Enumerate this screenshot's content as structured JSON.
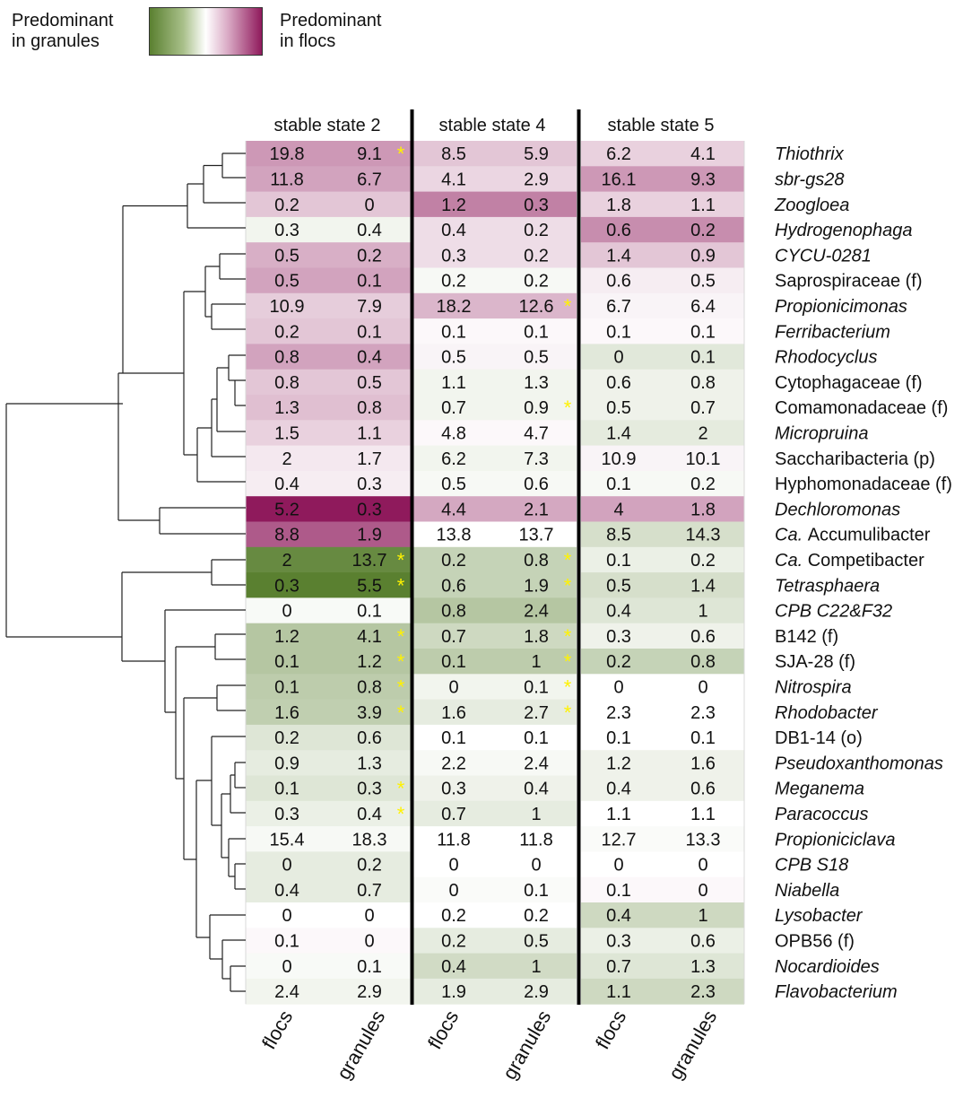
{
  "legend": {
    "left_line1": "Predominant",
    "left_line2": "in granules",
    "right_line1": "Predominant",
    "right_line2": "in flocs"
  },
  "colors": {
    "green_extreme": "#5a8030",
    "white_mid": "#ffffff",
    "purple_extreme": "#8f1a5c",
    "star": "#fff200",
    "separator": "#000000"
  },
  "chart_data": {
    "type": "heatmap",
    "states": [
      "stable state 2",
      "stable state 4",
      "stable state 5"
    ],
    "column_labels": [
      "flocs",
      "granules"
    ],
    "rows": [
      {
        "label": "Thiothrix",
        "italic": true,
        "values": [
          "19.8",
          "9.1",
          "8.5",
          "5.9",
          "6.2",
          "4.1"
        ],
        "stars": [
          true,
          false,
          false
        ],
        "shade": [
          0.45,
          0.25,
          0.2
        ]
      },
      {
        "label": "sbr-gs28",
        "italic": true,
        "values": [
          "11.8",
          "6.7",
          "4.1",
          "2.9",
          "16.1",
          "9.3"
        ],
        "stars": [
          false,
          false,
          false
        ],
        "shade": [
          0.4,
          0.18,
          0.45
        ]
      },
      {
        "label": "Zoogloea",
        "italic": true,
        "values": [
          "0.2",
          "0",
          "1.2",
          "0.3",
          "1.8",
          "1.1"
        ],
        "stars": [
          false,
          false,
          false
        ],
        "shade": [
          0.25,
          0.55,
          0.2
        ]
      },
      {
        "label": "Hydrogenophaga",
        "italic": true,
        "values": [
          "0.3",
          "0.4",
          "0.4",
          "0.2",
          "0.6",
          "0.2"
        ],
        "stars": [
          false,
          false,
          false
        ],
        "shade": [
          -0.08,
          0.15,
          0.5
        ]
      },
      {
        "label": "CYCU-0281",
        "italic": true,
        "values": [
          "0.5",
          "0.2",
          "0.3",
          "0.2",
          "1.4",
          "0.9"
        ],
        "stars": [
          false,
          false,
          false
        ],
        "shade": [
          0.35,
          0.15,
          0.25
        ]
      },
      {
        "label": "Saprospiraceae (f)",
        "italic": false,
        "values": [
          "0.5",
          "0.1",
          "0.2",
          "0.2",
          "0.6",
          "0.5"
        ],
        "stars": [
          false,
          false,
          false
        ],
        "shade": [
          0.4,
          -0.05,
          0.08
        ]
      },
      {
        "label": "Propionicimonas",
        "italic": true,
        "values": [
          "10.9",
          "7.9",
          "18.2",
          "12.6",
          "6.7",
          "6.4"
        ],
        "stars": [
          false,
          true,
          false
        ],
        "shade": [
          0.22,
          0.32,
          0.05
        ]
      },
      {
        "label": "Ferribacterium",
        "italic": true,
        "values": [
          "0.2",
          "0.1",
          "0.1",
          "0.1",
          "0.1",
          "0.1"
        ],
        "stars": [
          false,
          false,
          false
        ],
        "shade": [
          0.25,
          0.03,
          0.03
        ]
      },
      {
        "label": "Rhodocyclus",
        "italic": true,
        "values": [
          "0.8",
          "0.4",
          "0.5",
          "0.5",
          "0",
          "0.1"
        ],
        "stars": [
          false,
          false,
          false
        ],
        "shade": [
          0.4,
          0.05,
          -0.18
        ]
      },
      {
        "label": "Cytophagaceae (f)",
        "italic": false,
        "values": [
          "0.8",
          "0.5",
          "1.1",
          "1.3",
          "0.6",
          "0.8"
        ],
        "stars": [
          false,
          false,
          false
        ],
        "shade": [
          0.25,
          -0.08,
          -0.1
        ]
      },
      {
        "label": "Comamonadaceae (f)",
        "italic": false,
        "values": [
          "1.3",
          "0.8",
          "0.7",
          "0.9",
          "0.5",
          "0.7"
        ],
        "stars": [
          false,
          true,
          false
        ],
        "shade": [
          0.28,
          -0.08,
          -0.1
        ]
      },
      {
        "label": "Micropruina",
        "italic": true,
        "values": [
          "1.5",
          "1.1",
          "4.8",
          "4.7",
          "1.4",
          "2"
        ],
        "stars": [
          false,
          false,
          false
        ],
        "shade": [
          0.2,
          0.03,
          -0.16
        ]
      },
      {
        "label": "Saccharibacteria (p)",
        "italic": false,
        "values": [
          "2",
          "1.7",
          "6.2",
          "7.3",
          "10.9",
          "10.1"
        ],
        "stars": [
          false,
          false,
          false
        ],
        "shade": [
          0.1,
          -0.08,
          0.05
        ]
      },
      {
        "label": "Hyphomonadaceae (f)",
        "italic": false,
        "values": [
          "0.4",
          "0.3",
          "0.5",
          "0.6",
          "0.1",
          "0.2"
        ],
        "stars": [
          false,
          false,
          false
        ],
        "shade": [
          0.08,
          -0.05,
          -0.05
        ]
      },
      {
        "label": "Dechloromonas",
        "italic": true,
        "values": [
          "5.2",
          "0.3",
          "4.4",
          "2.1",
          "4",
          "1.8"
        ],
        "stars": [
          false,
          false,
          false
        ],
        "shade": [
          1.0,
          0.38,
          0.4
        ]
      },
      {
        "label": "Ca. Accumulibacter",
        "italic": false,
        "prefix": "Ca.",
        "rest": "Accumulibacter",
        "values": [
          "8.8",
          "1.9",
          "13.8",
          "13.7",
          "8.5",
          "14.3"
        ],
        "stars": [
          false,
          false,
          false
        ],
        "shade": [
          0.72,
          0.0,
          -0.25
        ]
      },
      {
        "label": "Ca. Competibacter",
        "italic": false,
        "prefix": "Ca.",
        "rest": "Competibacter",
        "values": [
          "2",
          "13.7",
          "0.2",
          "0.8",
          "0.1",
          "0.2"
        ],
        "stars": [
          true,
          true,
          false
        ],
        "shade": [
          -0.92,
          -0.35,
          -0.12
        ]
      },
      {
        "label": "Tetrasphaera",
        "italic": true,
        "values": [
          "0.3",
          "5.5",
          "0.6",
          "1.9",
          "0.5",
          "1.4"
        ],
        "stars": [
          true,
          true,
          false
        ],
        "shade": [
          -1.0,
          -0.35,
          -0.25
        ]
      },
      {
        "label": "CPB C22&F32",
        "italic": true,
        "values": [
          "0",
          "0.1",
          "0.8",
          "2.4",
          "0.4",
          "1"
        ],
        "stars": [
          false,
          false,
          false
        ],
        "shade": [
          -0.04,
          -0.45,
          -0.2
        ]
      },
      {
        "label": "B142 (f)",
        "italic": false,
        "values": [
          "1.2",
          "4.1",
          "0.7",
          "1.8",
          "0.3",
          "0.6"
        ],
        "stars": [
          true,
          true,
          false
        ],
        "shade": [
          -0.45,
          -0.3,
          -0.1
        ]
      },
      {
        "label": "SJA-28 (f)",
        "italic": false,
        "values": [
          "0.1",
          "1.2",
          "0.1",
          "1",
          "0.2",
          "0.8"
        ],
        "stars": [
          true,
          true,
          false
        ],
        "shade": [
          -0.45,
          -0.4,
          -0.35
        ]
      },
      {
        "label": "Nitrospira",
        "italic": true,
        "values": [
          "0.1",
          "0.8",
          "0",
          "0.1",
          "0",
          "0"
        ],
        "stars": [
          true,
          true,
          false
        ],
        "shade": [
          -0.4,
          -0.08,
          0.0
        ]
      },
      {
        "label": "Rhodobacter",
        "italic": true,
        "values": [
          "1.6",
          "3.9",
          "1.6",
          "2.7",
          "2.3",
          "2.3"
        ],
        "stars": [
          true,
          true,
          false
        ],
        "shade": [
          -0.38,
          -0.15,
          0.0
        ]
      },
      {
        "label": "DB1-14 (o)",
        "italic": false,
        "values": [
          "0.2",
          "0.6",
          "0.1",
          "0.1",
          "0.1",
          "0.1"
        ],
        "stars": [
          false,
          false,
          false
        ],
        "shade": [
          -0.2,
          0.0,
          0.0
        ]
      },
      {
        "label": "Pseudoxanthomonas",
        "italic": true,
        "values": [
          "0.9",
          "1.3",
          "2.2",
          "2.4",
          "1.2",
          "1.6"
        ],
        "stars": [
          false,
          false,
          false
        ],
        "shade": [
          -0.15,
          -0.05,
          -0.1
        ]
      },
      {
        "label": "Meganema",
        "italic": true,
        "values": [
          "0.1",
          "0.3",
          "0.3",
          "0.4",
          "0.4",
          "0.6"
        ],
        "stars": [
          true,
          false,
          false
        ],
        "shade": [
          -0.2,
          -0.1,
          -0.1
        ]
      },
      {
        "label": "Paracoccus",
        "italic": true,
        "values": [
          "0.3",
          "0.4",
          "0.7",
          "1",
          "1.1",
          "1.1"
        ],
        "stars": [
          true,
          false,
          false
        ],
        "shade": [
          -0.12,
          -0.15,
          0.0
        ]
      },
      {
        "label": "Propioniciclava",
        "italic": true,
        "values": [
          "15.4",
          "18.3",
          "11.8",
          "11.8",
          "12.7",
          "13.3"
        ],
        "stars": [
          false,
          false,
          false
        ],
        "shade": [
          -0.05,
          0.0,
          -0.03
        ]
      },
      {
        "label": "CPB S18",
        "italic": true,
        "values": [
          "0",
          "0.2",
          "0",
          "0",
          "0",
          "0"
        ],
        "stars": [
          false,
          false,
          false
        ],
        "shade": [
          -0.15,
          0.0,
          0.0
        ]
      },
      {
        "label": "Niabella",
        "italic": true,
        "values": [
          "0.4",
          "0.7",
          "0",
          "0.1",
          "0.1",
          "0"
        ],
        "stars": [
          false,
          false,
          false
        ],
        "shade": [
          -0.15,
          -0.03,
          0.03
        ]
      },
      {
        "label": "Lysobacter",
        "italic": true,
        "values": [
          "0",
          "0",
          "0.2",
          "0.2",
          "0.4",
          "1"
        ],
        "stars": [
          false,
          false,
          false
        ],
        "shade": [
          0.0,
          0.0,
          -0.3
        ]
      },
      {
        "label": "OPB56 (f)",
        "italic": false,
        "values": [
          "0.1",
          "0",
          "0.2",
          "0.5",
          "0.3",
          "0.6"
        ],
        "stars": [
          false,
          false,
          false
        ],
        "shade": [
          0.03,
          -0.15,
          -0.12
        ]
      },
      {
        "label": "Nocardioides",
        "italic": true,
        "values": [
          "0",
          "0.1",
          "0.4",
          "1",
          "0.7",
          "1.3"
        ],
        "stars": [
          false,
          false,
          false
        ],
        "shade": [
          -0.04,
          -0.28,
          -0.2
        ]
      },
      {
        "label": "Flavobacterium",
        "italic": true,
        "values": [
          "2.4",
          "2.9",
          "1.9",
          "2.9",
          "1.1",
          "2.3"
        ],
        "stars": [
          false,
          false,
          false
        ],
        "shade": [
          -0.08,
          -0.15,
          -0.3
        ]
      }
    ]
  }
}
